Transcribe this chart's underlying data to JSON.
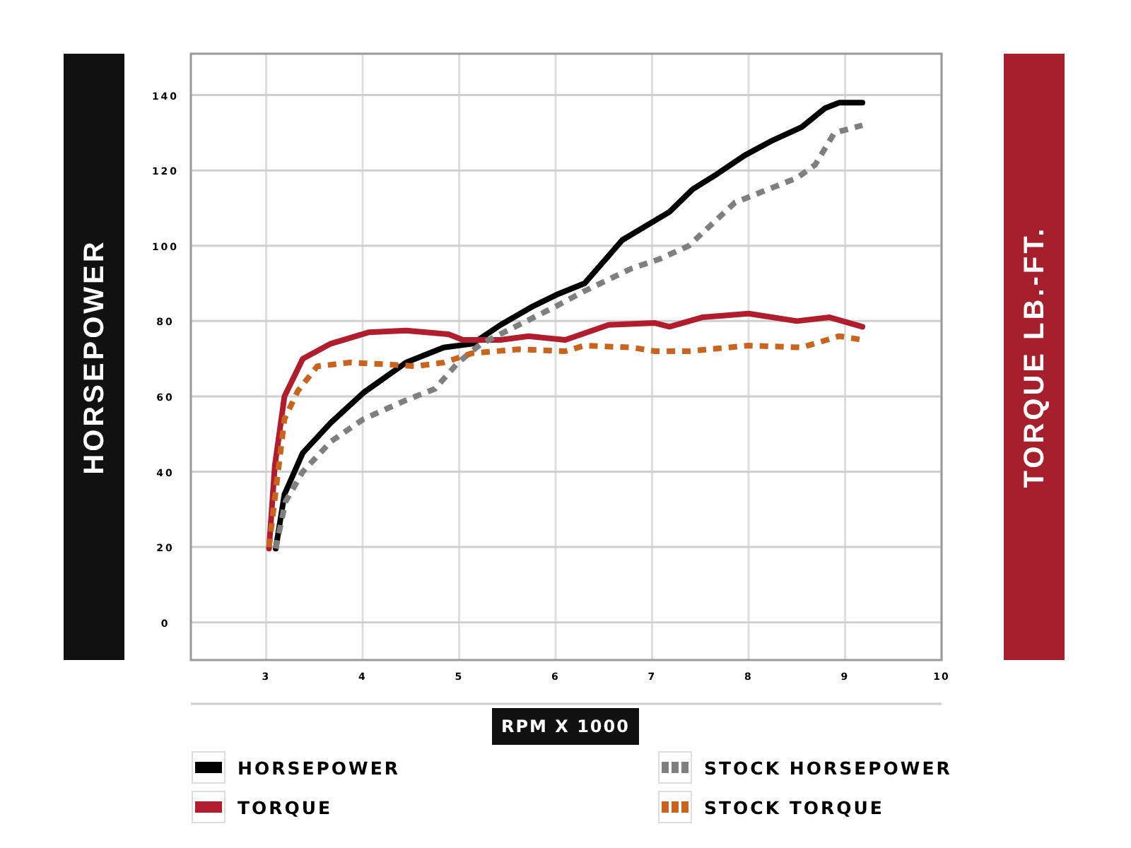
{
  "chart_data": {
    "type": "line",
    "xlabel": "RPM X 1000",
    "ylabel": "HORSEPOWER",
    "y2label": "TORQUE LB.-FT.",
    "xlim": [
      2.22,
      10
    ],
    "xticks": [
      3,
      4,
      5,
      6,
      7,
      8,
      9,
      10
    ],
    "ylim": [
      -10,
      151
    ],
    "yticks": [
      0,
      20,
      40,
      60,
      80,
      100,
      120,
      140
    ],
    "grid": true,
    "legend": "bottom",
    "marker": "none",
    "series": [
      {
        "name": "HORSEPOWER",
        "color": "#000000",
        "line_style": "solid",
        "x": [
          3.1,
          3.19,
          3.38,
          3.67,
          4.01,
          4.45,
          4.84,
          5.14,
          5.43,
          5.77,
          6.01,
          6.3,
          6.69,
          7.18,
          7.42,
          7.67,
          7.96,
          8.25,
          8.55,
          8.79,
          8.94,
          9.18
        ],
        "values": [
          19.6,
          34,
          45,
          53,
          61,
          69,
          73,
          74,
          79,
          84,
          87,
          90,
          101.5,
          109,
          115,
          119,
          124,
          128,
          131.5,
          136.5,
          138,
          138
        ]
      },
      {
        "name": "TORQUE",
        "color": "#b01e2e",
        "line_style": "solid",
        "x": [
          3.03,
          3.09,
          3.19,
          3.38,
          3.67,
          4.06,
          4.45,
          4.89,
          5.04,
          5.43,
          5.72,
          6.1,
          6.55,
          7.03,
          7.18,
          7.52,
          8.0,
          8.5,
          8.84,
          9.18
        ],
        "values": [
          19.6,
          41.5,
          60,
          70,
          74,
          77,
          77.5,
          76.5,
          75,
          75,
          76,
          75,
          79,
          79.5,
          78.5,
          81,
          82,
          80,
          81,
          78.5
        ]
      },
      {
        "name": "STOCK HORSEPOWER",
        "color": "#7f7f7f",
        "line_style": "dashed",
        "x": [
          3.1,
          3.2,
          3.38,
          3.67,
          4.01,
          4.45,
          4.75,
          4.99,
          5.23,
          5.62,
          6.01,
          6.3,
          6.79,
          7.08,
          7.38,
          7.86,
          8.5,
          8.69,
          8.89,
          9.18
        ],
        "values": [
          19.6,
          32,
          40,
          48,
          54,
          59,
          62,
          69,
          74,
          79,
          84,
          88,
          94,
          96.5,
          100,
          111.5,
          118,
          121.5,
          130,
          132
        ]
      },
      {
        "name": "STOCK TORQUE",
        "color": "#c8641e",
        "line_style": "dashed",
        "x": [
          3.03,
          3.19,
          3.33,
          3.53,
          3.87,
          4.26,
          4.55,
          4.84,
          5.14,
          5.62,
          6.1,
          6.3,
          6.79,
          7.03,
          7.38,
          8.0,
          8.55,
          8.94,
          9.18
        ],
        "values": [
          20,
          54,
          61.5,
          68,
          69,
          68.5,
          68,
          69,
          71.5,
          72.5,
          72,
          73.5,
          73,
          72,
          72,
          73.5,
          73,
          76,
          75
        ]
      }
    ]
  }
}
